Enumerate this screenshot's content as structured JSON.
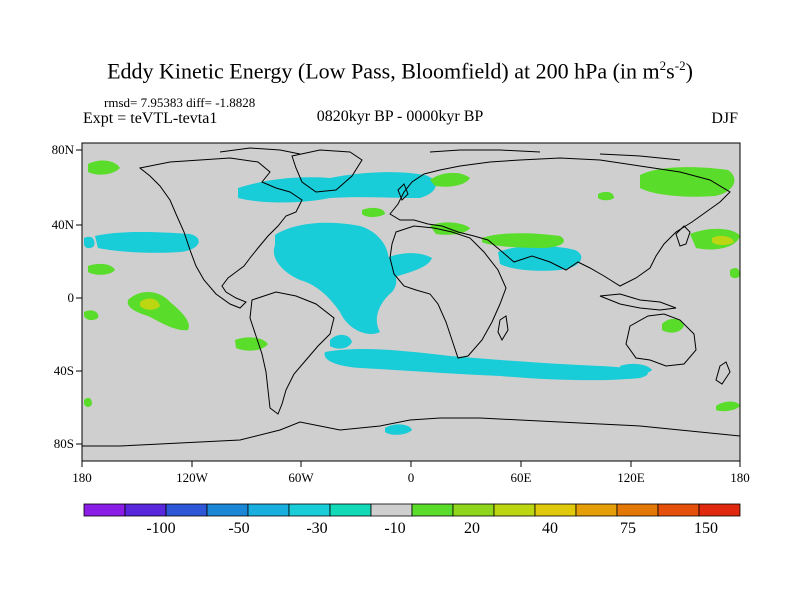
{
  "title": {
    "main": "Eddy Kinetic Energy (Low Pass, Bloomfield) at 200 hPa (in m",
    "sup1": "2",
    "mid": "s",
    "sup2": "-2",
    "end": ")"
  },
  "stats": "rmsd= 7.95383 diff= -1.8828",
  "expt": "Expt = teVTL-tevta1",
  "period": "0820kyr BP - 0000kyr BP",
  "season": "DJF",
  "axes": {
    "lat_labels": [
      "80N",
      "40N",
      "0",
      "40S",
      "80S"
    ],
    "lon_labels": [
      "180",
      "120W",
      "60W",
      "0",
      "60E",
      "120E",
      "180"
    ]
  },
  "colorbar": {
    "colors": [
      "#8a1ee6",
      "#5a28dc",
      "#2d57d6",
      "#1a86d6",
      "#18aee0",
      "#18ccd8",
      "#12d9b8",
      "#cfcfcf",
      "#5adc2a",
      "#8fd61c",
      "#bcd612",
      "#e0c80a",
      "#e69e08",
      "#e47806",
      "#e4500a",
      "#e0280e"
    ],
    "labels": [
      "-100",
      "-50",
      "-30",
      "-10",
      "20",
      "40",
      "75",
      "150"
    ]
  },
  "colors": {
    "background_field": "#cfcfcf",
    "cyan": "#18ccd8",
    "green": "#5adc2a",
    "yellow_green": "#bcd612",
    "coast": "#000000"
  }
}
